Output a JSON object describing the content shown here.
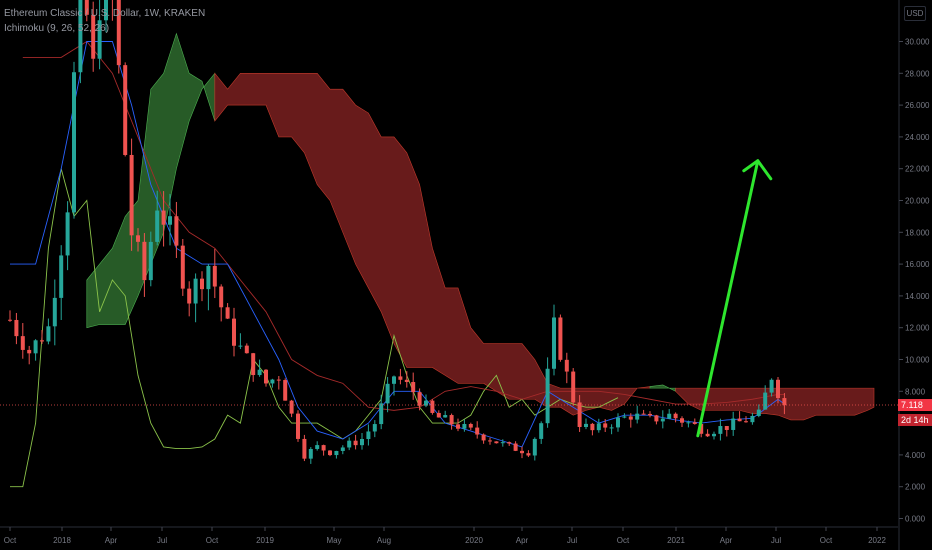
{
  "header": {
    "symbol_line": "Ethereum Classic / U.S. Dollar, 1W, KRAKEN",
    "indicator": "Ichimoku (9, 26, 52, 26)"
  },
  "currency_button": "USD",
  "last_price": "7.118",
  "countdown": "2d 14h",
  "colors": {
    "up": "#26a69a",
    "down": "#ef5350",
    "bullish_cloud": "#2e6b2e",
    "bearish_cloud": "#7a2020",
    "conversion_line": "#2962ff",
    "base_line": "#a52a2a",
    "lagging_span": "#8bc34a",
    "arrow": "#2ee62e"
  },
  "chart_data": {
    "type": "candlestick",
    "title": "Ethereum Classic / U.S. Dollar, 1W, KRAKEN",
    "ylim": [
      0,
      31
    ],
    "y_ticks": [
      "0.000",
      "2.000",
      "4.000",
      "6.000",
      "8.000",
      "10.000",
      "12.000",
      "14.000",
      "16.000",
      "18.000",
      "20.000",
      "22.000",
      "24.000",
      "26.000",
      "28.000",
      "30.000"
    ],
    "x_ticks": [
      "Oct",
      "2018",
      "Apr",
      "Jul",
      "Oct",
      "2019",
      "May",
      "Aug",
      "2020",
      "Apr",
      "Jul",
      "Oct",
      "2021",
      "Apr",
      "Jul",
      "Oct",
      "2022"
    ],
    "price_path": [
      [
        0,
        12.5
      ],
      [
        3,
        10.5
      ],
      [
        6,
        12
      ],
      [
        9,
        20
      ],
      [
        11,
        35
      ],
      [
        13,
        28
      ],
      [
        15,
        38
      ],
      [
        17,
        28
      ],
      [
        19,
        18
      ],
      [
        21,
        15
      ],
      [
        23,
        20
      ],
      [
        25,
        18
      ],
      [
        28,
        14
      ],
      [
        31,
        16
      ],
      [
        34,
        12
      ],
      [
        37,
        10
      ],
      [
        40,
        8.5
      ],
      [
        42,
        9
      ],
      [
        44,
        6.5
      ],
      [
        46,
        4
      ],
      [
        48,
        4.5
      ],
      [
        50,
        4.2
      ],
      [
        52,
        4.5
      ],
      [
        55,
        5
      ],
      [
        57,
        6
      ],
      [
        60,
        9
      ],
      [
        63,
        8
      ],
      [
        66,
        6.5
      ],
      [
        69,
        6
      ],
      [
        72,
        5.5
      ],
      [
        75,
        5
      ],
      [
        78,
        4.5
      ],
      [
        81,
        4.2
      ],
      [
        83,
        6
      ],
      [
        85,
        12
      ],
      [
        87,
        9
      ],
      [
        89,
        6
      ],
      [
        91,
        5.5
      ],
      [
        94,
        6
      ],
      [
        97,
        6.5
      ],
      [
        100,
        6.2
      ],
      [
        103,
        6.5
      ],
      [
        106,
        6
      ],
      [
        109,
        5.5
      ],
      [
        112,
        5.8
      ],
      [
        115,
        6.2
      ],
      [
        117,
        6.5
      ],
      [
        119,
        9
      ],
      [
        120,
        8
      ],
      [
        121,
        7.1
      ]
    ],
    "cloud": [
      [
        12,
        12,
        15
      ],
      [
        14,
        12.2,
        16
      ],
      [
        16,
        12.2,
        17
      ],
      [
        18,
        12.2,
        19
      ],
      [
        20,
        14,
        20
      ],
      [
        22,
        16,
        27
      ],
      [
        24,
        18,
        28
      ],
      [
        26,
        22,
        30.5
      ],
      [
        28,
        25,
        28
      ],
      [
        30,
        27,
        27.5
      ],
      [
        32,
        28,
        25
      ],
      [
        34,
        27,
        26
      ],
      [
        36,
        28,
        26
      ],
      [
        38,
        28,
        26
      ],
      [
        40,
        28,
        26
      ],
      [
        42,
        28,
        24
      ],
      [
        44,
        28,
        24
      ],
      [
        46,
        28,
        23
      ],
      [
        48,
        28,
        21
      ],
      [
        50,
        27,
        20
      ],
      [
        52,
        27,
        18
      ],
      [
        54,
        26,
        16
      ],
      [
        56,
        25.5,
        14.5
      ],
      [
        58,
        24,
        13
      ],
      [
        60,
        24,
        11
      ],
      [
        62,
        23,
        9.5
      ],
      [
        64,
        21,
        9.5
      ],
      [
        66,
        17,
        9.5
      ],
      [
        68,
        14.5,
        9
      ],
      [
        70,
        14.5,
        8.5
      ],
      [
        72,
        12,
        8.5
      ],
      [
        74,
        11,
        8.5
      ],
      [
        76,
        11,
        8
      ],
      [
        78,
        11,
        7.5
      ],
      [
        80,
        11,
        7.5
      ],
      [
        82,
        10,
        7.5
      ],
      [
        84,
        8.5,
        7
      ],
      [
        86,
        8.2,
        7
      ],
      [
        88,
        8.2,
        6.5
      ],
      [
        90,
        8.2,
        6.8
      ],
      [
        92,
        8.2,
        7
      ],
      [
        94,
        8.2,
        6.8
      ],
      [
        96,
        8.2,
        7.2
      ],
      [
        98,
        8.2,
        8.2
      ],
      [
        100,
        8.2,
        8.3
      ],
      [
        102,
        8.2,
        8.4
      ],
      [
        104,
        8.2,
        8
      ],
      [
        106,
        8.2,
        7.2
      ],
      [
        108,
        8.2,
        6.8
      ],
      [
        110,
        8.2,
        6.8
      ],
      [
        112,
        8.2,
        6.8
      ],
      [
        114,
        8.2,
        6.8
      ],
      [
        116,
        8.2,
        6.6
      ],
      [
        118,
        8.2,
        6.6
      ],
      [
        120,
        8.2,
        6.5
      ],
      [
        122,
        8.2,
        6.2
      ],
      [
        124,
        8.2,
        6.2
      ],
      [
        126,
        8.2,
        6.5
      ],
      [
        128,
        8.2,
        6.5
      ],
      [
        130,
        8.2,
        6.5
      ],
      [
        132,
        8.2,
        6.5
      ],
      [
        134,
        8.2,
        6.8
      ],
      [
        135,
        8.2,
        7
      ]
    ],
    "conversion_line": [
      [
        0,
        16
      ],
      [
        4,
        16
      ],
      [
        8,
        22
      ],
      [
        12,
        30
      ],
      [
        16,
        30
      ],
      [
        19,
        26
      ],
      [
        22,
        21
      ],
      [
        26,
        17
      ],
      [
        30,
        16
      ],
      [
        34,
        16
      ],
      [
        38,
        13
      ],
      [
        42,
        10
      ],
      [
        45,
        7
      ],
      [
        48,
        5.5
      ],
      [
        52,
        5
      ],
      [
        56,
        6
      ],
      [
        60,
        8
      ],
      [
        64,
        8
      ],
      [
        68,
        6
      ],
      [
        72,
        5.5
      ],
      [
        76,
        5
      ],
      [
        80,
        4.5
      ],
      [
        84,
        8
      ],
      [
        88,
        7
      ],
      [
        92,
        6
      ],
      [
        96,
        6.5
      ],
      [
        100,
        6.5
      ],
      [
        104,
        6.2
      ],
      [
        108,
        6
      ],
      [
        112,
        6.2
      ],
      [
        116,
        6.3
      ],
      [
        120,
        7.5
      ],
      [
        121,
        7.2
      ]
    ],
    "base_line": [
      [
        2,
        29
      ],
      [
        8,
        29
      ],
      [
        12,
        30
      ],
      [
        16,
        28
      ],
      [
        20,
        24
      ],
      [
        24,
        20
      ],
      [
        28,
        18
      ],
      [
        32,
        17
      ],
      [
        36,
        15
      ],
      [
        40,
        13
      ],
      [
        44,
        10
      ],
      [
        48,
        9
      ],
      [
        52,
        8.5
      ],
      [
        56,
        7
      ],
      [
        60,
        6.8
      ],
      [
        64,
        7
      ],
      [
        68,
        8
      ],
      [
        72,
        8.3
      ],
      [
        76,
        8
      ],
      [
        80,
        7.5
      ],
      [
        84,
        8
      ],
      [
        88,
        8
      ],
      [
        92,
        8
      ],
      [
        96,
        7.8
      ],
      [
        100,
        7.5
      ],
      [
        104,
        7.2
      ],
      [
        108,
        7.2
      ],
      [
        112,
        7.3
      ],
      [
        116,
        7.5
      ],
      [
        120,
        7.8
      ],
      [
        121,
        7.8
      ]
    ],
    "lagging_span": [
      [
        0,
        2
      ],
      [
        2,
        2
      ],
      [
        4,
        6
      ],
      [
        6,
        17
      ],
      [
        8,
        22
      ],
      [
        10,
        19
      ],
      [
        12,
        20
      ],
      [
        14,
        13
      ],
      [
        16,
        15
      ],
      [
        18,
        14
      ],
      [
        20,
        9
      ],
      [
        22,
        6
      ],
      [
        24,
        4.5
      ],
      [
        26,
        4.4
      ],
      [
        28,
        4.4
      ],
      [
        30,
        4.5
      ],
      [
        32,
        5
      ],
      [
        34,
        6.5
      ],
      [
        36,
        6
      ],
      [
        38,
        10
      ],
      [
        40,
        9
      ],
      [
        42,
        7
      ],
      [
        44,
        6
      ],
      [
        46,
        6
      ],
      [
        48,
        6
      ],
      [
        50,
        5.5
      ],
      [
        52,
        5
      ],
      [
        54,
        5.5
      ],
      [
        56,
        6.5
      ],
      [
        58,
        7.5
      ],
      [
        60,
        11.5
      ],
      [
        62,
        9
      ],
      [
        64,
        7
      ],
      [
        66,
        6
      ],
      [
        68,
        6
      ],
      [
        70,
        6
      ],
      [
        72,
        6.5
      ],
      [
        74,
        8
      ],
      [
        76,
        9
      ],
      [
        78,
        7
      ],
      [
        80,
        7.5
      ],
      [
        82,
        6.5
      ],
      [
        84,
        7
      ],
      [
        86,
        7.5
      ],
      [
        88,
        7.2
      ],
      [
        90,
        7
      ],
      [
        92,
        7
      ],
      [
        94,
        7.4
      ],
      [
        95,
        7.6
      ]
    ],
    "projection_arrow": {
      "from": [
        137,
        5.2
      ],
      "to": [
        147,
        22.5
      ]
    }
  }
}
